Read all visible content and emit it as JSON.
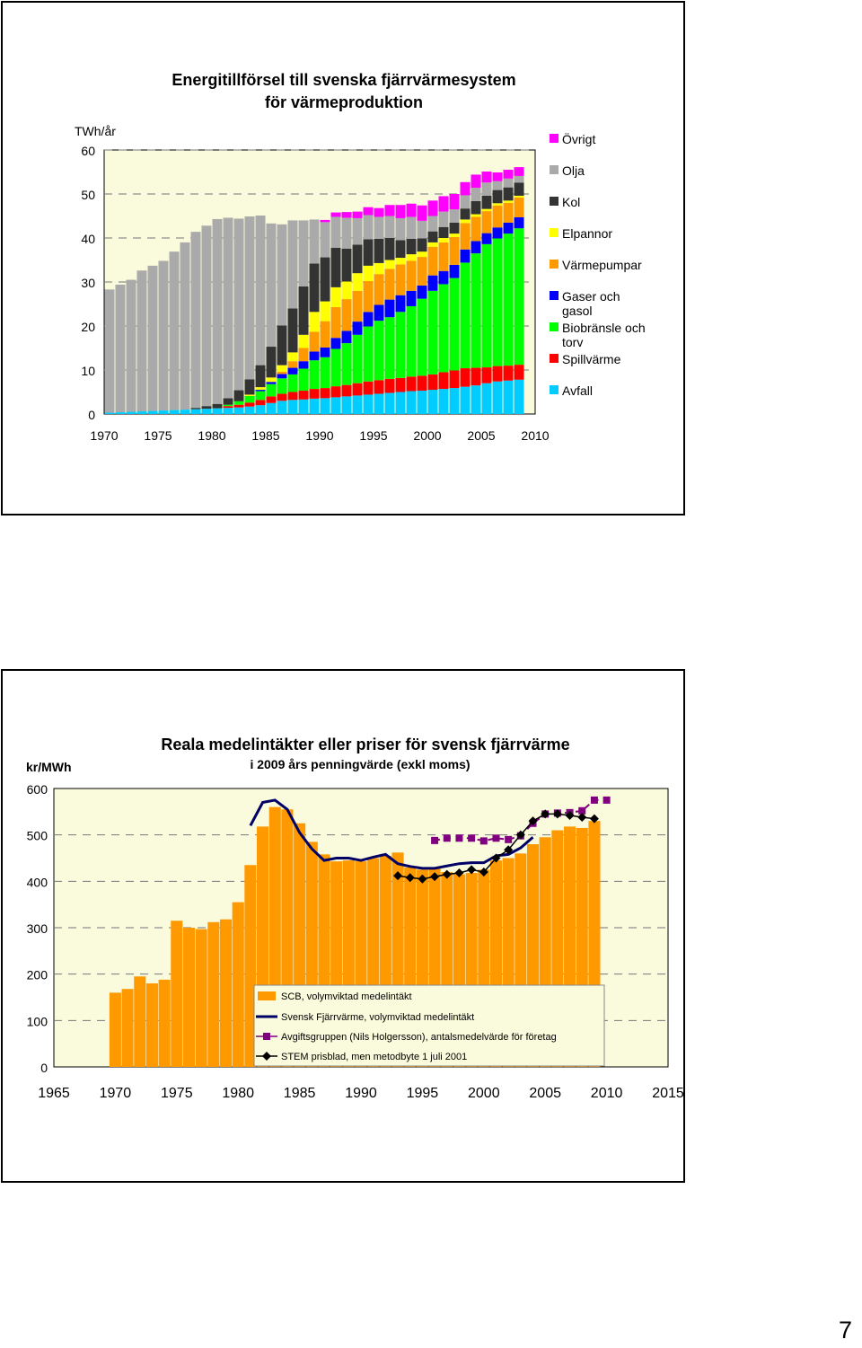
{
  "page_number": "7",
  "chart_data": [
    {
      "type": "bar",
      "stacked": true,
      "title": "Energitillförsel till svenska fjärrvärmesystem",
      "subtitle": "för värmeproduktion",
      "ylabel": "TWh/år",
      "xlabel": "",
      "ylim": [
        0,
        60
      ],
      "y_ticks": [
        0,
        10,
        20,
        30,
        40,
        50,
        60
      ],
      "x_tick_labels": [
        "1970",
        "1975",
        "1980",
        "1985",
        "1990",
        "1995",
        "2000",
        "2005",
        "2010"
      ],
      "grid": "dashed horizontal",
      "legend_position": "right",
      "x": [
        1970,
        1971,
        1972,
        1973,
        1974,
        1975,
        1976,
        1977,
        1978,
        1979,
        1980,
        1981,
        1982,
        1983,
        1984,
        1985,
        1986,
        1987,
        1988,
        1989,
        1990,
        1991,
        1992,
        1993,
        1994,
        1995,
        1996,
        1997,
        1998,
        1999,
        2000,
        2001,
        2002,
        2003,
        2004,
        2005,
        2006,
        2007,
        2008
      ],
      "series": [
        {
          "name": "Avfall",
          "color": "#00ccff",
          "values": [
            0.3,
            0.4,
            0.5,
            0.6,
            0.7,
            0.8,
            0.9,
            1.0,
            1.1,
            1.2,
            1.3,
            1.4,
            1.5,
            1.7,
            2.0,
            2.5,
            3.0,
            3.2,
            3.3,
            3.5,
            3.6,
            3.8,
            4.0,
            4.2,
            4.4,
            4.6,
            4.8,
            5.0,
            5.2,
            5.3,
            5.5,
            5.7,
            5.9,
            6.2,
            6.5,
            7.0,
            7.4,
            7.6,
            7.8
          ]
        },
        {
          "name": "Spillvärme",
          "color": "#ff0000",
          "values": [
            0,
            0,
            0,
            0,
            0,
            0,
            0,
            0,
            0,
            0,
            0,
            0.4,
            0.6,
            0.9,
            1.2,
            1.5,
            1.6,
            1.8,
            2.0,
            2.2,
            2.3,
            2.5,
            2.6,
            2.8,
            3.0,
            3.1,
            3.2,
            3.2,
            3.3,
            3.4,
            3.5,
            3.8,
            4.0,
            4.2,
            4.0,
            3.6,
            3.5,
            3.4,
            3.4
          ]
        },
        {
          "name": "Biobränsle och torv",
          "color": "#00ff00",
          "values": [
            0,
            0,
            0,
            0,
            0,
            0,
            0,
            0,
            0,
            0,
            0,
            0.3,
            0.8,
            1.5,
            2.0,
            2.8,
            3.5,
            4.0,
            5.0,
            6.5,
            7.0,
            8.5,
            9.5,
            11.0,
            12.5,
            13.5,
            14.0,
            15.0,
            16.0,
            17.5,
            19.0,
            20.0,
            21.0,
            24.0,
            26.0,
            28.0,
            29.0,
            30.0,
            31.0
          ]
        },
        {
          "name": "Gaser och gasol",
          "color": "#0000ff",
          "values": [
            0,
            0,
            0,
            0,
            0,
            0,
            0,
            0,
            0,
            0,
            0,
            0,
            0,
            0,
            0.3,
            0.5,
            1.0,
            1.5,
            1.7,
            2.0,
            2.2,
            2.5,
            2.8,
            3.0,
            3.3,
            3.6,
            4.0,
            3.8,
            3.5,
            3.0,
            3.5,
            3.0,
            3.0,
            3.0,
            2.8,
            2.5,
            2.5,
            2.5,
            2.5
          ]
        },
        {
          "name": "Värmepumpar",
          "color": "#ff9900",
          "values": [
            0,
            0,
            0,
            0,
            0,
            0,
            0,
            0,
            0,
            0,
            0,
            0,
            0,
            0,
            0,
            0,
            0.5,
            1.5,
            3.0,
            4.5,
            6.0,
            7.0,
            7.2,
            7.0,
            7.0,
            7.0,
            7.0,
            7.0,
            6.8,
            6.5,
            6.5,
            6.5,
            6.3,
            6.0,
            5.5,
            5.0,
            5.0,
            4.5,
            4.5
          ]
        },
        {
          "name": "Elpannor",
          "color": "#ffff00",
          "values": [
            0,
            0,
            0,
            0,
            0,
            0,
            0,
            0,
            0,
            0,
            0,
            0,
            0,
            0.3,
            0.6,
            1.0,
            1.5,
            2.0,
            3.0,
            4.5,
            4.5,
            4.5,
            4.0,
            4.0,
            3.5,
            2.5,
            2.0,
            1.5,
            1.5,
            1.2,
            1.0,
            1.0,
            0.8,
            0.8,
            0.6,
            0.5,
            0.5,
            0.5,
            0.4
          ]
        },
        {
          "name": "Kol",
          "color": "#333333",
          "values": [
            0,
            0,
            0,
            0,
            0,
            0,
            0,
            0,
            0.3,
            0.6,
            1.0,
            1.5,
            2.5,
            3.5,
            5.0,
            7.0,
            9.0,
            10.0,
            11.0,
            11.0,
            10.0,
            9.0,
            7.5,
            6.5,
            6.0,
            5.5,
            5.0,
            4.0,
            3.5,
            3.0,
            2.5,
            2.5,
            2.5,
            2.5,
            3.0,
            3.0,
            3.0,
            3.0,
            3.0
          ]
        },
        {
          "name": "Olja",
          "color": "#aaaaaa",
          "values": [
            28.0,
            29.0,
            30.0,
            32.0,
            33.0,
            34.0,
            36.0,
            38.0,
            40.0,
            41.0,
            42.0,
            41.0,
            39.0,
            37.0,
            34.0,
            28.0,
            23.0,
            20.0,
            15.0,
            10.0,
            8.0,
            7.0,
            7.0,
            6.0,
            5.5,
            5.0,
            5.0,
            5.0,
            5.0,
            4.0,
            3.5,
            3.5,
            3.0,
            3.0,
            3.0,
            3.0,
            2.0,
            2.0,
            1.5
          ]
        },
        {
          "name": "Övrigt",
          "color": "#ff00ff",
          "values": [
            0,
            0,
            0,
            0,
            0,
            0,
            0,
            0,
            0,
            0,
            0,
            0,
            0,
            0,
            0,
            0,
            0,
            0,
            0,
            0,
            0.5,
            1.0,
            1.3,
            1.5,
            1.8,
            2.0,
            2.5,
            3.0,
            3.0,
            3.5,
            3.5,
            3.5,
            3.5,
            3.0,
            3.0,
            2.5,
            2.0,
            2.0,
            2.0
          ]
        }
      ]
    },
    {
      "type": "bar",
      "title": "Reala medelintäkter eller priser för svensk fjärrvärme",
      "subtitle": "i 2009 års penningvärde (exkl moms)",
      "ylabel": "kr/MWh",
      "xlabel": "",
      "ylim": [
        0,
        600
      ],
      "xlim": [
        1965,
        2015
      ],
      "y_ticks": [
        0,
        100,
        200,
        300,
        400,
        500,
        600
      ],
      "x_ticks": [
        1965,
        1970,
        1975,
        1980,
        1985,
        1990,
        1995,
        2000,
        2005,
        2010,
        2015
      ],
      "grid": "dashed horizontal",
      "legend_position": "bottom-right inside",
      "series": [
        {
          "name": "SCB, volymviktad medelintäkt",
          "kind": "bar",
          "color": "#ff9900",
          "x": [
            1970,
            1971,
            1972,
            1973,
            1974,
            1975,
            1976,
            1977,
            1978,
            1979,
            1980,
            1981,
            1982,
            1983,
            1984,
            1985,
            1986,
            1987,
            1988,
            1989,
            1990,
            1991,
            1992,
            1993,
            1994,
            1995,
            1996,
            1997,
            1998,
            1999,
            2000,
            2001,
            2002,
            2003,
            2004,
            2005,
            2006,
            2007,
            2008,
            2009
          ],
          "values": [
            160,
            168,
            195,
            180,
            188,
            315,
            300,
            297,
            312,
            318,
            355,
            435,
            518,
            560,
            555,
            525,
            485,
            458,
            443,
            445,
            443,
            450,
            455,
            462,
            430,
            425,
            430,
            420,
            415,
            418,
            425,
            445,
            450,
            460,
            480,
            495,
            510,
            518,
            515,
            530
          ]
        },
        {
          "name": "Svensk Fjärrvärme, volymviktad medelintäkt",
          "kind": "line",
          "color": "#000066",
          "x": [
            1981,
            1982,
            1983,
            1984,
            1985,
            1986,
            1987,
            1988,
            1989,
            1990,
            1991,
            1992,
            1993,
            1994,
            1995,
            1996,
            1997,
            1998,
            1999,
            2000,
            2001,
            2002,
            2003,
            2004
          ],
          "values": [
            520,
            570,
            575,
            555,
            505,
            470,
            445,
            450,
            450,
            445,
            452,
            458,
            438,
            432,
            428,
            428,
            433,
            438,
            440,
            440,
            455,
            458,
            472,
            495
          ]
        },
        {
          "name": "Avgiftsgruppen (Nils Holgersson), antalsmedelvärde för företag",
          "kind": "line-marker",
          "color": "#800080",
          "x": [
            1996,
            1997,
            1998,
            1999,
            2000,
            2001,
            2002,
            2003,
            2004,
            2005,
            2006,
            2007,
            2008,
            2009,
            2010
          ],
          "values": [
            488,
            493,
            493,
            493,
            487,
            493,
            490,
            498,
            525,
            545,
            547,
            548,
            552,
            575,
            575
          ]
        },
        {
          "name": "STEM prisblad, men metodbyte 1 juli 2001",
          "kind": "line-marker",
          "color": "#000000",
          "x": [
            1993,
            1994,
            1995,
            1996,
            1997,
            1998,
            1999,
            2000,
            2001,
            2002,
            2003,
            2004,
            2005,
            2006,
            2007,
            2008,
            2009
          ],
          "values": [
            412,
            408,
            405,
            410,
            415,
            418,
            425,
            420,
            450,
            468,
            500,
            530,
            545,
            545,
            542,
            538,
            535
          ]
        }
      ]
    }
  ]
}
